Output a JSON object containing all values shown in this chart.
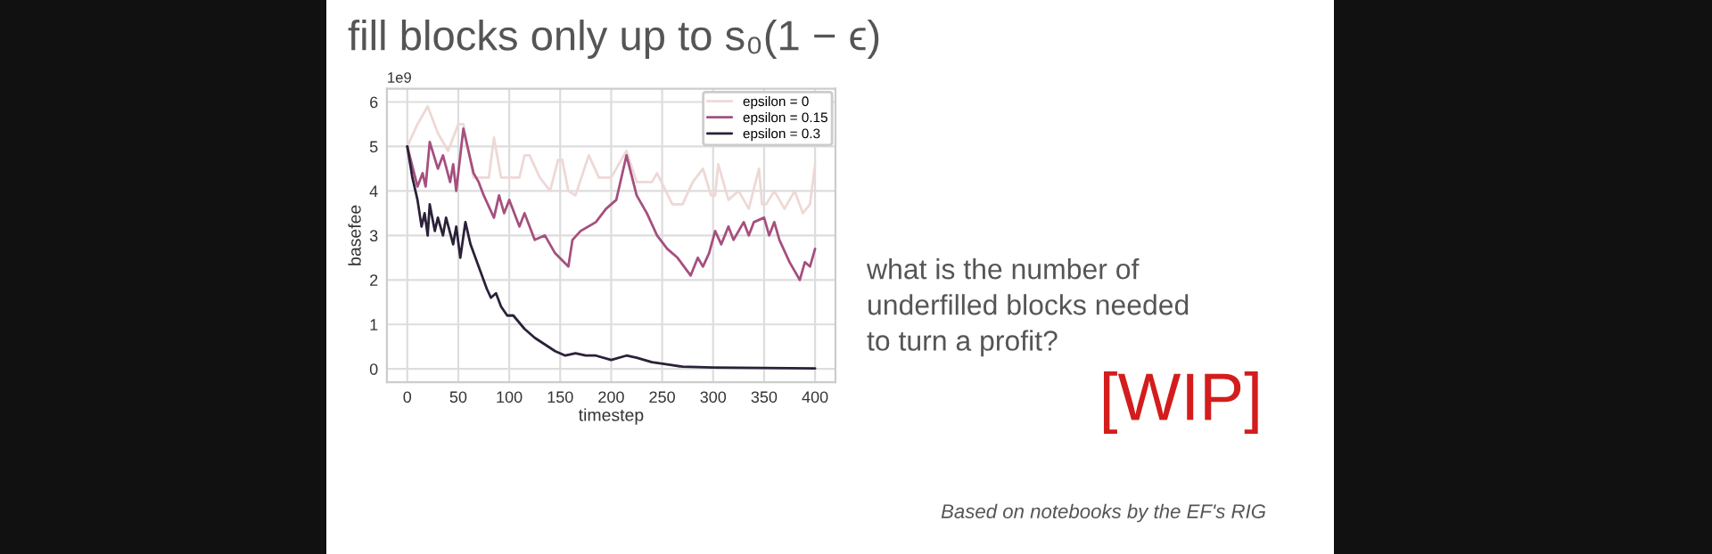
{
  "chart_data": {
    "type": "line",
    "title": "fill blocks only up to s₀(1 − ϵ)",
    "xlabel": "timestep",
    "ylabel": "basefee",
    "annotations": [
      "1e9",
      "what is the number of\nunderfilled blocks needed\nto turn a profit?",
      "[WIP]",
      "Based on notebooks by the EF's RIG"
    ],
    "xlim": [
      -20,
      420
    ],
    "ylim": [
      -0.3,
      6.3
    ],
    "xticks": [
      0,
      50,
      100,
      150,
      200,
      250,
      300,
      350,
      400
    ],
    "yticks": [
      0,
      1,
      2,
      3,
      4,
      5,
      6
    ],
    "grid": true,
    "legend": "top right",
    "marker": "none",
    "line_style": "solid",
    "series": [
      {
        "name": "epsilon = 0",
        "color": "#eed8d6",
        "x": [
          0,
          10,
          20,
          30,
          40,
          50,
          55,
          65,
          80,
          85,
          92,
          110,
          115,
          120,
          130,
          140,
          148,
          152,
          158,
          165,
          178,
          188,
          200,
          215,
          225,
          240,
          245,
          260,
          270,
          280,
          290,
          298,
          302,
          305,
          315,
          325,
          335,
          345,
          348,
          352,
          360,
          370,
          380,
          388,
          395,
          400
        ],
        "values": [
          5.0,
          5.5,
          5.9,
          5.3,
          4.9,
          5.5,
          5.5,
          4.3,
          4.3,
          5.2,
          4.3,
          4.3,
          4.8,
          4.8,
          4.3,
          4.0,
          4.7,
          4.7,
          4.0,
          3.9,
          4.8,
          4.3,
          4.3,
          4.9,
          4.2,
          4.2,
          4.4,
          3.7,
          3.7,
          4.2,
          4.5,
          3.9,
          3.9,
          4.6,
          3.8,
          4.0,
          3.6,
          4.5,
          3.7,
          3.7,
          4.0,
          3.6,
          4.0,
          3.5,
          3.7,
          4.6
        ]
      },
      {
        "name": "epsilon = 0.15",
        "color": "#a5507e",
        "x": [
          0,
          10,
          15,
          18,
          22,
          30,
          35,
          42,
          45,
          48,
          55,
          65,
          70,
          75,
          85,
          90,
          95,
          100,
          110,
          115,
          125,
          135,
          145,
          158,
          162,
          170,
          185,
          195,
          205,
          215,
          225,
          235,
          245,
          255,
          265,
          278,
          285,
          290,
          296,
          302,
          308,
          315,
          320,
          330,
          335,
          340,
          350,
          355,
          360,
          365,
          375,
          385,
          390,
          395,
          400
        ],
        "values": [
          5.0,
          4.1,
          4.4,
          4.1,
          5.1,
          4.5,
          4.8,
          4.2,
          4.6,
          4.0,
          5.4,
          4.4,
          4.2,
          3.9,
          3.4,
          3.9,
          3.5,
          3.8,
          3.2,
          3.5,
          2.9,
          3.0,
          2.6,
          2.3,
          2.9,
          3.1,
          3.3,
          3.6,
          3.8,
          4.8,
          3.9,
          3.5,
          3.0,
          2.7,
          2.5,
          2.1,
          2.5,
          2.3,
          2.6,
          3.1,
          2.8,
          3.2,
          2.9,
          3.3,
          3.0,
          3.3,
          3.4,
          3.0,
          3.3,
          2.9,
          2.4,
          2.0,
          2.4,
          2.3,
          2.7
        ]
      },
      {
        "name": "epsilon = 0.3",
        "color": "#2b2139",
        "x": [
          0,
          5,
          10,
          14,
          17,
          20,
          22,
          27,
          30,
          35,
          38,
          45,
          48,
          52,
          57,
          62,
          70,
          78,
          82,
          87,
          92,
          98,
          104,
          115,
          125,
          135,
          145,
          155,
          165,
          175,
          185,
          200,
          215,
          225,
          240,
          255,
          270,
          300,
          350,
          400
        ],
        "values": [
          5.0,
          4.3,
          3.8,
          3.2,
          3.5,
          3.0,
          3.7,
          3.1,
          3.4,
          3.0,
          3.4,
          2.8,
          3.2,
          2.5,
          3.3,
          2.8,
          2.3,
          1.8,
          1.6,
          1.7,
          1.4,
          1.2,
          1.2,
          0.9,
          0.7,
          0.55,
          0.4,
          0.3,
          0.35,
          0.3,
          0.3,
          0.2,
          0.3,
          0.25,
          0.15,
          0.1,
          0.05,
          0.03,
          0.02,
          0.01
        ]
      }
    ]
  }
}
